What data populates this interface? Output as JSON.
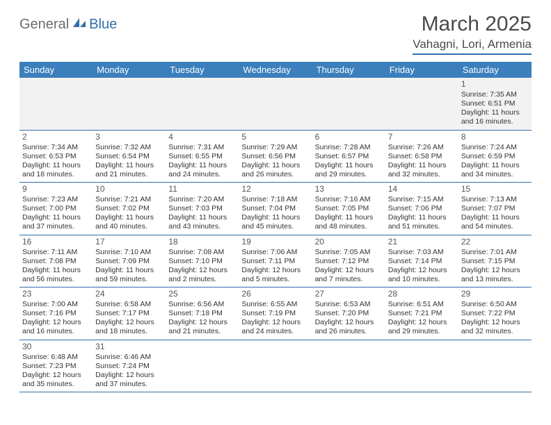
{
  "brand": {
    "part1": "General",
    "part2": "Blue"
  },
  "title": "March 2025",
  "location": "Vahagni, Lori, Armenia",
  "colors": {
    "header_bg": "#3b7fbc",
    "header_text": "#ffffff",
    "rule": "#2f6fa8",
    "body_text": "#333333",
    "brand_gray": "#6c6c6c",
    "brand_blue": "#2f6fa8",
    "first_row_bg": "#f2f2f2",
    "page_bg": "#ffffff"
  },
  "weekdays": [
    "Sunday",
    "Monday",
    "Tuesday",
    "Wednesday",
    "Thursday",
    "Friday",
    "Saturday"
  ],
  "weeks": [
    [
      null,
      null,
      null,
      null,
      null,
      null,
      {
        "n": "1",
        "sunrise": "7:35 AM",
        "sunset": "6:51 PM",
        "dh": "11",
        "dm": "16"
      }
    ],
    [
      {
        "n": "2",
        "sunrise": "7:34 AM",
        "sunset": "6:53 PM",
        "dh": "11",
        "dm": "18"
      },
      {
        "n": "3",
        "sunrise": "7:32 AM",
        "sunset": "6:54 PM",
        "dh": "11",
        "dm": "21"
      },
      {
        "n": "4",
        "sunrise": "7:31 AM",
        "sunset": "6:55 PM",
        "dh": "11",
        "dm": "24"
      },
      {
        "n": "5",
        "sunrise": "7:29 AM",
        "sunset": "6:56 PM",
        "dh": "11",
        "dm": "26"
      },
      {
        "n": "6",
        "sunrise": "7:28 AM",
        "sunset": "6:57 PM",
        "dh": "11",
        "dm": "29"
      },
      {
        "n": "7",
        "sunrise": "7:26 AM",
        "sunset": "6:58 PM",
        "dh": "11",
        "dm": "32"
      },
      {
        "n": "8",
        "sunrise": "7:24 AM",
        "sunset": "6:59 PM",
        "dh": "11",
        "dm": "34"
      }
    ],
    [
      {
        "n": "9",
        "sunrise": "7:23 AM",
        "sunset": "7:00 PM",
        "dh": "11",
        "dm": "37"
      },
      {
        "n": "10",
        "sunrise": "7:21 AM",
        "sunset": "7:02 PM",
        "dh": "11",
        "dm": "40"
      },
      {
        "n": "11",
        "sunrise": "7:20 AM",
        "sunset": "7:03 PM",
        "dh": "11",
        "dm": "43"
      },
      {
        "n": "12",
        "sunrise": "7:18 AM",
        "sunset": "7:04 PM",
        "dh": "11",
        "dm": "45"
      },
      {
        "n": "13",
        "sunrise": "7:16 AM",
        "sunset": "7:05 PM",
        "dh": "11",
        "dm": "48"
      },
      {
        "n": "14",
        "sunrise": "7:15 AM",
        "sunset": "7:06 PM",
        "dh": "11",
        "dm": "51"
      },
      {
        "n": "15",
        "sunrise": "7:13 AM",
        "sunset": "7:07 PM",
        "dh": "11",
        "dm": "54"
      }
    ],
    [
      {
        "n": "16",
        "sunrise": "7:11 AM",
        "sunset": "7:08 PM",
        "dh": "11",
        "dm": "56"
      },
      {
        "n": "17",
        "sunrise": "7:10 AM",
        "sunset": "7:09 PM",
        "dh": "11",
        "dm": "59"
      },
      {
        "n": "18",
        "sunrise": "7:08 AM",
        "sunset": "7:10 PM",
        "dh": "12",
        "dm": "2"
      },
      {
        "n": "19",
        "sunrise": "7:06 AM",
        "sunset": "7:11 PM",
        "dh": "12",
        "dm": "5"
      },
      {
        "n": "20",
        "sunrise": "7:05 AM",
        "sunset": "7:12 PM",
        "dh": "12",
        "dm": "7"
      },
      {
        "n": "21",
        "sunrise": "7:03 AM",
        "sunset": "7:14 PM",
        "dh": "12",
        "dm": "10"
      },
      {
        "n": "22",
        "sunrise": "7:01 AM",
        "sunset": "7:15 PM",
        "dh": "12",
        "dm": "13"
      }
    ],
    [
      {
        "n": "23",
        "sunrise": "7:00 AM",
        "sunset": "7:16 PM",
        "dh": "12",
        "dm": "16"
      },
      {
        "n": "24",
        "sunrise": "6:58 AM",
        "sunset": "7:17 PM",
        "dh": "12",
        "dm": "18"
      },
      {
        "n": "25",
        "sunrise": "6:56 AM",
        "sunset": "7:18 PM",
        "dh": "12",
        "dm": "21"
      },
      {
        "n": "26",
        "sunrise": "6:55 AM",
        "sunset": "7:19 PM",
        "dh": "12",
        "dm": "24"
      },
      {
        "n": "27",
        "sunrise": "6:53 AM",
        "sunset": "7:20 PM",
        "dh": "12",
        "dm": "26"
      },
      {
        "n": "28",
        "sunrise": "6:51 AM",
        "sunset": "7:21 PM",
        "dh": "12",
        "dm": "29"
      },
      {
        "n": "29",
        "sunrise": "6:50 AM",
        "sunset": "7:22 PM",
        "dh": "12",
        "dm": "32"
      }
    ],
    [
      {
        "n": "30",
        "sunrise": "6:48 AM",
        "sunset": "7:23 PM",
        "dh": "12",
        "dm": "35"
      },
      {
        "n": "31",
        "sunrise": "6:46 AM",
        "sunset": "7:24 PM",
        "dh": "12",
        "dm": "37"
      },
      null,
      null,
      null,
      null,
      null
    ]
  ],
  "cell_template": {
    "sunrise_prefix": "Sunrise: ",
    "sunset_prefix": "Sunset: ",
    "daylight_prefix": "Daylight: ",
    "hours_word": " hours",
    "and_word": "and ",
    "minutes_word": " minutes."
  }
}
